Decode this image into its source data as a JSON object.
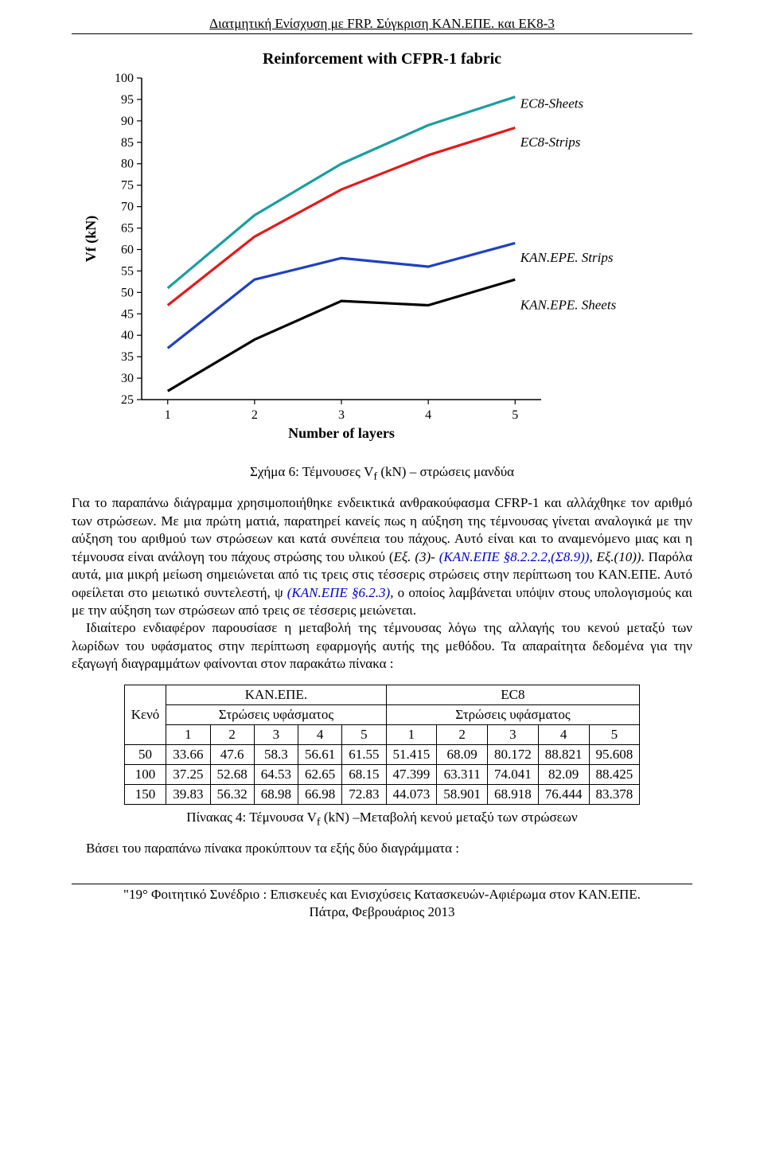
{
  "running_head": "Διατμητική Ενίσχυση με FRP. Σύγκριση ΚΑΝ.ΕΠΕ. και ΕΚ8-3",
  "chart": {
    "type": "line",
    "title": "Reinforcement with CFPR-1 fabric",
    "xlabel": "Number of layers",
    "ylabel": "Vf (kN)",
    "x_ticks": [
      1,
      2,
      3,
      4,
      5
    ],
    "y_ticks": [
      25,
      30,
      35,
      40,
      45,
      50,
      55,
      60,
      65,
      70,
      75,
      80,
      85,
      90,
      95,
      100
    ],
    "xlim": [
      0.7,
      5.3
    ],
    "ylim": [
      25,
      100
    ],
    "background": "#ffffff",
    "axis_color": "#000000",
    "tick_fontsize": 16,
    "label_fontsize": 18,
    "title_fontsize": 20,
    "line_width": 3.2,
    "series": [
      {
        "name": "EC8-Sheets",
        "label": "EC8-Sheets",
        "color": "#1a9e9e",
        "x": [
          1,
          2,
          3,
          4,
          5
        ],
        "y": [
          51,
          68,
          80,
          89,
          95.6
        ],
        "label_x": 5.06,
        "label_y": 94
      },
      {
        "name": "EC8-Strips",
        "label": "EC8-Strips",
        "color": "#e41a1c",
        "x": [
          1,
          2,
          3,
          4,
          5
        ],
        "y": [
          47,
          63,
          74,
          82,
          88.4
        ],
        "label_x": 5.06,
        "label_y": 85
      },
      {
        "name": "KAN.EPE. Strips",
        "label": "KAN.EPE. Strips",
        "color": "#2040c0",
        "x": [
          1,
          2,
          3,
          4,
          5
        ],
        "y": [
          37,
          53,
          58,
          56,
          61.5
        ],
        "label_x": 5.06,
        "label_y": 58
      },
      {
        "name": "KAN.EPE. Sheets",
        "label": "KAN.EPE. Sheets",
        "color": "#000000",
        "x": [
          1,
          2,
          3,
          4,
          5
        ],
        "y": [
          27,
          39,
          48,
          47,
          53
        ],
        "label_x": 5.06,
        "label_y": 47
      }
    ],
    "label_fontsize_series": 17
  },
  "caption6": "Σχήμα 6: Τέμνουσες V",
  "caption6_sub": "f",
  "caption6_rest": " (kN) – στρώσεις μανδύα",
  "para1_a": "Για το παραπάνω διάγραμμα χρησιμοποιήθηκε ενδεικτικά ανθρακούφασμα CFRP-1 και αλλάχθηκε τον αριθμό των στρώσεων. Με μια πρώτη ματιά, παρατηρεί κανείς πως η αύξηση της τέμνουσας γίνεται αναλογικά με την αύξηση του αριθμού των στρώσεων και κατά συνέπεια του πάχους. Αυτό είναι και το αναμενόμενο μιας και η τέμνουσα είναι ανάλογη του πάχους στρώσης του υλικού (",
  "para1_eq1": "Εξ. (3)-",
  "para1_ref1": " (ΚΑΝ.ΕΠΕ §8.2.2.2,(Σ8.9))",
  "para1_b": ", ",
  "para1_eq2": "Εξ.(10))",
  "para1_c": ". Παρόλα αυτά, μια μικρή μείωση σημειώνεται από τις τρεις στις τέσσερις στρώσεις στην περίπτωση του ΚΑΝ.ΕΠΕ. Αυτό οφείλεται στο μειωτικό συντελεστή, ψ ",
  "para1_ref2": "(ΚΑΝ.ΕΠΕ §6.2.3)",
  "para1_d": ", ο οποίος λαμβάνεται υπόψιν στους υπολογισμούς και με την αύξηση των στρώσεων από τρεις σε τέσσερις μειώνεται.",
  "para2": "Ιδιαίτερο ενδιαφέρον παρουσίασε η μεταβολή της τέμνουσας λόγω της αλλαγής του κενού μεταξύ των λωρίδων του υφάσματος στην περίπτωση εφαρμογής αυτής της μεθόδου. Τα απαραίτητα δεδομένα για την εξαγωγή διαγραμμάτων φαίνονται στον παρακάτω πίνακα :",
  "table": {
    "type": "table",
    "row_header": "Κενό",
    "group_headers": [
      "ΚΑΝ.ΕΠΕ.",
      "EC8"
    ],
    "sub_header": "Στρώσεις υφάσματος",
    "col_numbers": [
      "1",
      "2",
      "3",
      "4",
      "5",
      "1",
      "2",
      "3",
      "4",
      "5"
    ],
    "rows": [
      {
        "k": "50",
        "v": [
          "33.66",
          "47.6",
          "58.3",
          "56.61",
          "61.55",
          "51.415",
          "68.09",
          "80.172",
          "88.821",
          "95.608"
        ]
      },
      {
        "k": "100",
        "v": [
          "37.25",
          "52.68",
          "64.53",
          "62.65",
          "68.15",
          "47.399",
          "63.311",
          "74.041",
          "82.09",
          "88.425"
        ]
      },
      {
        "k": "150",
        "v": [
          "39.83",
          "56.32",
          "68.98",
          "66.98",
          "72.83",
          "44.073",
          "58.901",
          "68.918",
          "76.444",
          "83.378"
        ]
      }
    ]
  },
  "table4_a": "Πίνακας 4: Τέμνουσα V",
  "table4_sub": "f",
  "table4_b": " (kN) –Μεταβολή κενού μεταξύ των στρώσεων",
  "closing": "Βάσει του παραπάνω πίνακα προκύπτουν τα εξής δύο διαγράμματα :",
  "footer1": "\"19° Φοιτητικό Συνέδριο : Επισκευές και Ενισχύσεις Κατασκευών-Αφιέρωμα στον ΚΑΝ.ΕΠΕ.",
  "footer2": "Πάτρα, Φεβρουάριος 2013"
}
